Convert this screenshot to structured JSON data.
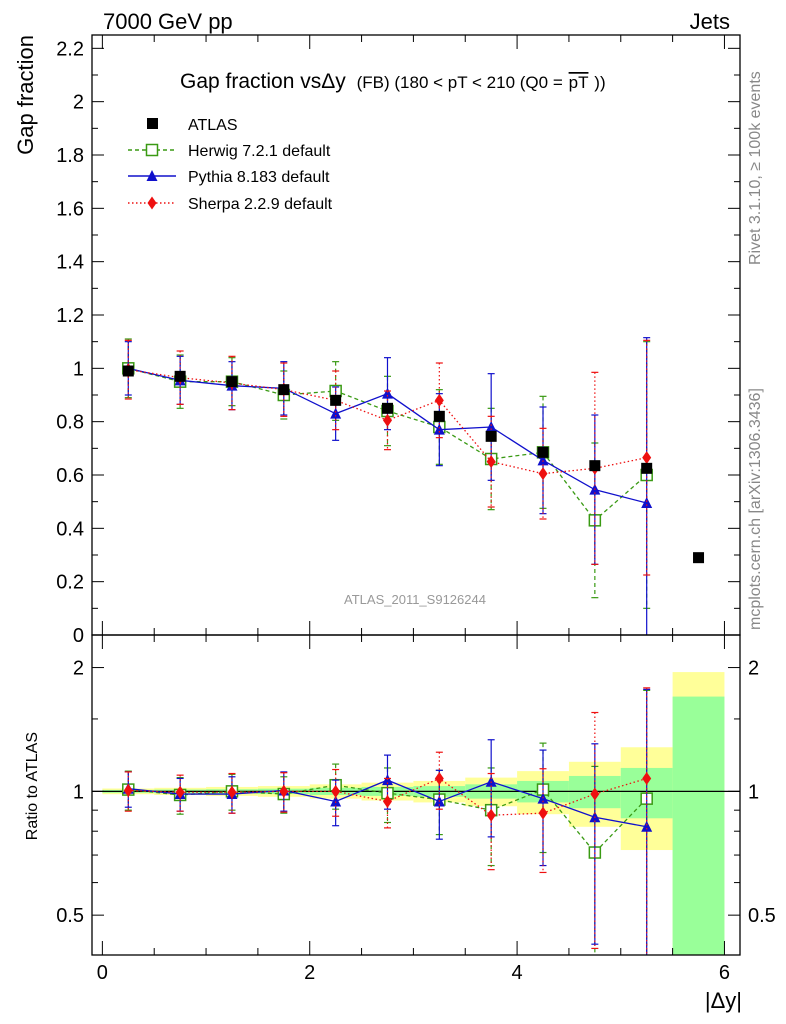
{
  "header": {
    "left": "7000 GeV pp",
    "right": "Jets"
  },
  "side_labels": {
    "rivet": "Rivet 3.1.10, ≥ 100k events",
    "mcplots": "mcplots.cern.ch [arXiv:1306.3436]"
  },
  "colors": {
    "ATLAS": "#000000",
    "Herwig": "#3a9a14",
    "Pythia": "#1010cc",
    "Sherpa": "#ee1010",
    "band_inner": "#99ff99",
    "band_outer": "#ffff99"
  },
  "chart_data": [
    {
      "type": "scatter",
      "title_main": "Gap fraction vsΔy",
      "title_detail": "(FB) (180 < pT < 210 (Q0 =",
      "title_overline": "pT",
      "title_end": "))",
      "ylabel": "Gap fraction",
      "watermark": "ATLAS_2011_S9126244",
      "xlim": [
        -0.1,
        6.15
      ],
      "ylim": [
        0,
        2.25
      ],
      "yticks": [
        0,
        0.2,
        0.4,
        0.6,
        0.8,
        1,
        1.2,
        1.4,
        1.6,
        1.8,
        2,
        2.2
      ],
      "ytick_labels": [
        "0",
        "0.2",
        "0.4",
        "0.6",
        "0.8",
        "1",
        "1.2",
        "1.4",
        "1.6",
        "1.8",
        "2",
        "2.2"
      ],
      "x": [
        0.25,
        0.75,
        1.25,
        1.75,
        2.25,
        2.75,
        3.25,
        3.75,
        4.25,
        4.75,
        5.25,
        5.75
      ],
      "series": [
        {
          "name": "ATLAS",
          "style": "data",
          "values": [
            0.99,
            0.97,
            0.95,
            0.92,
            0.88,
            0.85,
            0.82,
            0.745,
            0.685,
            0.635,
            0.625,
            0.29
          ]
        },
        {
          "name": "Herwig 7.2.1 default",
          "style": "herwig",
          "values": [
            1.0,
            0.95,
            0.95,
            0.9,
            0.915,
            0.84,
            0.78,
            0.66,
            0.685,
            0.43,
            0.6
          ],
          "err": [
            0.11,
            0.1,
            0.09,
            0.09,
            0.11,
            0.13,
            0.14,
            0.19,
            0.21,
            0.29,
            0.5
          ]
        },
        {
          "name": "Pythia 8.183 default",
          "style": "pythia",
          "values": [
            1.0,
            0.955,
            0.935,
            0.925,
            0.83,
            0.905,
            0.77,
            0.78,
            0.655,
            0.545,
            0.495
          ],
          "err": [
            0.1,
            0.09,
            0.09,
            0.1,
            0.1,
            0.135,
            0.135,
            0.2,
            0.2,
            0.28,
            0.62
          ]
        },
        {
          "name": "Sherpa 2.2.9 default",
          "style": "sherpa",
          "values": [
            0.995,
            0.965,
            0.945,
            0.92,
            0.88,
            0.805,
            0.88,
            0.65,
            0.605,
            0.625,
            0.665
          ],
          "err": [
            0.11,
            0.1,
            0.1,
            0.1,
            0.11,
            0.11,
            0.14,
            0.17,
            0.17,
            0.36,
            0.44
          ]
        }
      ]
    },
    {
      "type": "scatter",
      "ylabel": "Ratio to ATLAS",
      "xlabel": "|Δy|",
      "ylim": [
        0.4,
        2.4
      ],
      "yscale": "log",
      "yticks": [
        0.5,
        1,
        2
      ],
      "ytick_labels": [
        "0.5",
        "1",
        "2"
      ],
      "xticks": [
        0,
        2,
        4,
        6
      ],
      "xtick_labels": [
        "0",
        "2",
        "4",
        "6"
      ],
      "x": [
        0.25,
        0.75,
        1.25,
        1.75,
        2.25,
        2.75,
        3.25,
        3.75,
        4.25,
        4.75,
        5.25
      ],
      "bins": [
        [
          0,
          0.5
        ],
        [
          0.5,
          1
        ],
        [
          1,
          1.5
        ],
        [
          1.5,
          2
        ],
        [
          2,
          2.5
        ],
        [
          2.5,
          3
        ],
        [
          3,
          3.5
        ],
        [
          3.5,
          4
        ],
        [
          4,
          4.5
        ],
        [
          4.5,
          5
        ],
        [
          5,
          5.5
        ],
        [
          5.5,
          6
        ]
      ],
      "band_inner": [
        0.008,
        0.01,
        0.012,
        0.015,
        0.02,
        0.025,
        0.03,
        0.04,
        0.06,
        0.09,
        0.14,
        0.7
      ],
      "band_outer": [
        0.016,
        0.02,
        0.025,
        0.03,
        0.04,
        0.05,
        0.06,
        0.08,
        0.12,
        0.18,
        0.28,
        0.95
      ],
      "series": [
        {
          "name": "Herwig 7.2.1 default",
          "style": "herwig",
          "values": [
            1.01,
            0.98,
            1.0,
            0.985,
            1.035,
            0.99,
            0.955,
            0.9,
            1.01,
            0.71,
            0.96
          ],
          "err": [
            0.11,
            0.1,
            0.1,
            0.1,
            0.13,
            0.15,
            0.17,
            0.24,
            0.3,
            0.44,
            0.8
          ]
        },
        {
          "name": "Pythia 8.183 default",
          "style": "pythia",
          "values": [
            1.015,
            0.985,
            0.985,
            1.005,
            0.945,
            1.065,
            0.945,
            1.055,
            0.96,
            0.865,
            0.82
          ],
          "err": [
            0.1,
            0.09,
            0.1,
            0.11,
            0.12,
            0.16,
            0.18,
            0.28,
            0.3,
            0.44,
            0.95
          ]
        },
        {
          "name": "Sherpa 2.2.9 default",
          "style": "sherpa",
          "values": [
            1.005,
            0.995,
            0.995,
            1.0,
            1.0,
            0.945,
            1.075,
            0.875,
            0.885,
            0.985,
            1.075
          ],
          "err": [
            0.11,
            0.1,
            0.11,
            0.11,
            0.13,
            0.13,
            0.17,
            0.23,
            0.25,
            0.57,
            0.71
          ]
        }
      ]
    }
  ]
}
